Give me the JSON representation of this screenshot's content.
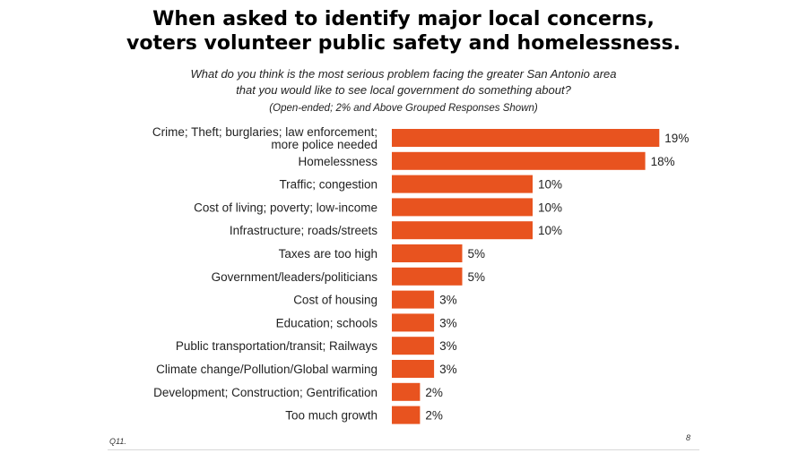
{
  "header": {
    "title_line1": "When asked to identify major local concerns,",
    "title_line2": "voters volunteer public safety and homelessness.",
    "question_line1": "What do you think is the most serious problem facing the greater San Antonio area",
    "question_line2": "that you would like to see local government do something about?",
    "note": "(Open-ended; 2% and Above Grouped Responses Shown)"
  },
  "footer": {
    "question_id": "Q11.",
    "page_number": "8"
  },
  "colors": {
    "bar": "#E8531F"
  },
  "chart_data": {
    "type": "bar",
    "orientation": "horizontal",
    "title": "When asked to identify major local concerns, voters volunteer public safety and homelessness.",
    "categories": [
      [
        "Crime; Theft; burglaries; law enforcement;",
        "more police needed"
      ],
      [
        "Homelessness"
      ],
      [
        "Traffic; congestion"
      ],
      [
        "Cost of living; poverty; low-income"
      ],
      [
        "Infrastructure; roads/streets"
      ],
      [
        "Taxes are too high"
      ],
      [
        "Government/leaders/politicians"
      ],
      [
        "Cost of housing"
      ],
      [
        "Education; schools"
      ],
      [
        "Public transportation/transit; Railways"
      ],
      [
        "Climate change/Pollution/Global warming"
      ],
      [
        "Development; Construction; Gentrification"
      ],
      [
        "Too much growth"
      ]
    ],
    "values": [
      19,
      18,
      10,
      10,
      10,
      5,
      5,
      3,
      3,
      3,
      3,
      2,
      2
    ],
    "value_labels": [
      "19%",
      "18%",
      "10%",
      "10%",
      "10%",
      "5%",
      "5%",
      "3%",
      "3%",
      "3%",
      "3%",
      "2%",
      "2%"
    ],
    "xlabel": "",
    "ylabel": "",
    "grid": false,
    "legend": "none"
  }
}
